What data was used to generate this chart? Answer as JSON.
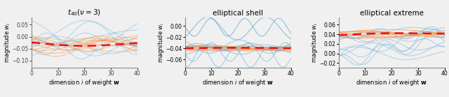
{
  "title1": "$t_{40}(\\nu = 3)$",
  "title2": "elliptical shell",
  "title3": "elliptical extreme",
  "xlabel": "dimension $i$ of weight $\\mathbf{w}$",
  "ylabel": "magnitude $w_i$",
  "panel1": {
    "ylim": [
      -0.13,
      0.08
    ],
    "yticks": [
      -0.1,
      -0.05,
      0.0,
      0.05
    ],
    "dashed_color": "#ee1111"
  },
  "panel2": {
    "ylim": [
      -0.075,
      0.015
    ],
    "yticks": [
      -0.06,
      -0.04,
      -0.02,
      0.0
    ],
    "dashed_color": "#ee1111"
  },
  "panel3": {
    "ylim": [
      -0.03,
      0.075
    ],
    "yticks": [
      -0.02,
      0.0,
      0.02,
      0.04,
      0.06
    ],
    "dashed_color": "#ee1111"
  },
  "blue_color": "#6baed6",
  "orange_color": "#fd8d3c",
  "fig_width": 6.4,
  "fig_height": 1.39,
  "dpi": 100,
  "bg_color": "#f0f0f0"
}
